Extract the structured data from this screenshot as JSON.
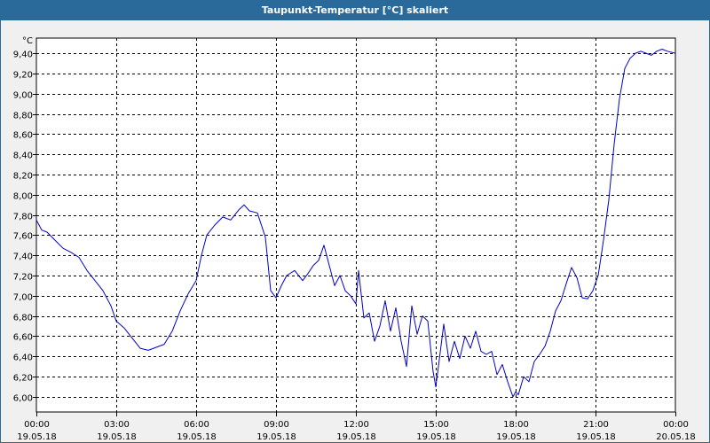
{
  "window": {
    "title": "Taupunkt-Temperatur [°C] skaliert"
  },
  "chart_data": {
    "type": "line",
    "unit_label": "°C",
    "ylim": [
      5.85,
      9.55
    ],
    "xlim": [
      0,
      24
    ],
    "y_ticks": [
      "6,00",
      "6,20",
      "6,40",
      "6,60",
      "6,80",
      "7,00",
      "7,20",
      "7,40",
      "7,60",
      "7,80",
      "8,00",
      "8,20",
      "8,40",
      "8,60",
      "8,80",
      "9,00",
      "9,20",
      "9,40"
    ],
    "x_ticks": [
      {
        "time": "00:00",
        "date": "19.05.18"
      },
      {
        "time": "03:00",
        "date": "19.05.18"
      },
      {
        "time": "06:00",
        "date": "19.05.18"
      },
      {
        "time": "09:00",
        "date": "19.05.18"
      },
      {
        "time": "12:00",
        "date": "19.05.18"
      },
      {
        "time": "15:00",
        "date": "19.05.18"
      },
      {
        "time": "18:00",
        "date": "19.05.18"
      },
      {
        "time": "21:00",
        "date": "19.05.18"
      },
      {
        "time": "00:00",
        "date": "20.05.18"
      }
    ],
    "grid": true,
    "line_color": "#0000cc",
    "series": [
      {
        "x": [
          0,
          0.2,
          0.4,
          0.7,
          1.0,
          1.3,
          1.6,
          1.9,
          2.2,
          2.5,
          2.8,
          3.0,
          3.3,
          3.6,
          3.9,
          4.2,
          4.5,
          4.8,
          5.1,
          5.4,
          5.7,
          6.0,
          6.2,
          6.4,
          6.7,
          7.0,
          7.3,
          7.6,
          7.8,
          8.0,
          8.3,
          8.6,
          8.8,
          9.0,
          9.2,
          9.4,
          9.7,
          10.0,
          10.2,
          10.4,
          10.6,
          10.8,
          11.0,
          11.2,
          11.4,
          11.6,
          11.8,
          12.0,
          12.1,
          12.3,
          12.5,
          12.7,
          12.9,
          13.1,
          13.3,
          13.5,
          13.7,
          13.9,
          14.1,
          14.3,
          14.5,
          14.7,
          14.9,
          15.0,
          15.1,
          15.3,
          15.5,
          15.7,
          15.9,
          16.1,
          16.3,
          16.5,
          16.7,
          16.9,
          17.1,
          17.3,
          17.5,
          17.7,
          17.9,
          18.0,
          18.1,
          18.3,
          18.5,
          18.7,
          18.9,
          19.1,
          19.3,
          19.5,
          19.7,
          19.9,
          20.1,
          20.3,
          20.5,
          20.7,
          20.9,
          21.1,
          21.3,
          21.5,
          21.7,
          21.9,
          22.1,
          22.3,
          22.5,
          22.7,
          22.9,
          23.1,
          23.3,
          23.5,
          23.7,
          24.0
        ],
        "y": [
          7.75,
          7.65,
          7.63,
          7.55,
          7.47,
          7.43,
          7.38,
          7.25,
          7.15,
          7.05,
          6.9,
          6.75,
          6.68,
          6.58,
          6.48,
          6.46,
          6.49,
          6.52,
          6.65,
          6.85,
          7.02,
          7.15,
          7.4,
          7.6,
          7.7,
          7.78,
          7.75,
          7.85,
          7.9,
          7.84,
          7.82,
          7.58,
          7.05,
          6.98,
          7.1,
          7.2,
          7.25,
          7.15,
          7.22,
          7.3,
          7.35,
          7.5,
          7.3,
          7.1,
          7.2,
          7.05,
          7.0,
          6.92,
          7.25,
          6.78,
          6.83,
          6.55,
          6.7,
          6.95,
          6.65,
          6.88,
          6.55,
          6.3,
          6.9,
          6.62,
          6.8,
          6.75,
          6.25,
          6.1,
          6.3,
          6.72,
          6.35,
          6.55,
          6.38,
          6.6,
          6.48,
          6.65,
          6.45,
          6.42,
          6.45,
          6.22,
          6.32,
          6.15,
          6.0,
          6.05,
          6.02,
          6.2,
          6.15,
          6.35,
          6.42,
          6.5,
          6.65,
          6.85,
          6.95,
          7.12,
          7.28,
          7.18,
          6.98,
          6.97,
          7.05,
          7.2,
          7.55,
          7.95,
          8.5,
          8.95,
          9.25,
          9.35,
          9.4,
          9.42,
          9.4,
          9.38,
          9.42,
          9.44,
          9.42,
          9.4
        ]
      }
    ]
  }
}
